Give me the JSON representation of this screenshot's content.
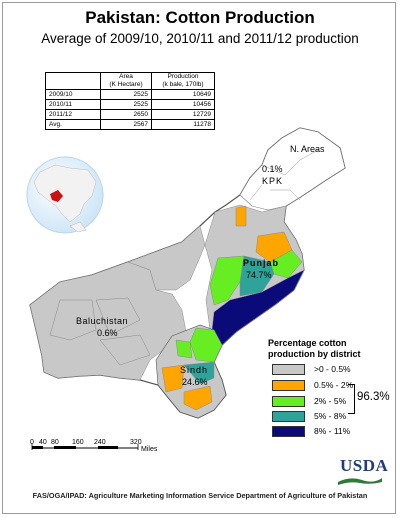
{
  "header": {
    "title": "Pakistan: Cotton Production",
    "subtitle": "Average of 2009/10, 2010/11 and 2011/12 production"
  },
  "table": {
    "head_area": "Area",
    "head_area_unit": "(K Hectare)",
    "head_prod": "Production",
    "head_prod_unit": "(k bale, 170lb)",
    "rows": [
      {
        "year": "2009/10",
        "area": "2525",
        "production": "10649"
      },
      {
        "year": "2010/11",
        "area": "2525",
        "production": "10456"
      },
      {
        "year": "2011/12",
        "area": "2650",
        "production": "12729"
      },
      {
        "year": "Avg.",
        "area": "2567",
        "production": "11278"
      }
    ]
  },
  "map_labels": {
    "n_areas": "N. Areas",
    "kpk_pct": "0.1%",
    "kpk": "KPK",
    "punjab": "Punjab",
    "punjab_pct": "74.7%",
    "baluchistan": "Baluchistan",
    "baluchistan_pct": "0.6%",
    "sindh": "Sindh",
    "sindh_pct": "24.6%"
  },
  "legend": {
    "title": "Percentage cotton production by district",
    "items": [
      {
        "label": ">0 - 0.5%",
        "color": "#c8c8c8"
      },
      {
        "label": "0.5% - 2%",
        "color": "#ffa500"
      },
      {
        "label": "2% - 5%",
        "color": "#66ee22"
      },
      {
        "label": "5% - 8%",
        "color": "#2fa39a"
      },
      {
        "label": "8% - 11%",
        "color": "#0a0a78"
      }
    ],
    "bracket_total": "96.3%"
  },
  "scale": {
    "ticks": [
      "0",
      "40",
      "80",
      "160",
      "240",
      "320"
    ],
    "unit": "Miles"
  },
  "logo": "USDA",
  "footer": "FAS/OGA/IPAD: Agriculture Marketing Information Service Department of Agriculture of Pakistan"
}
